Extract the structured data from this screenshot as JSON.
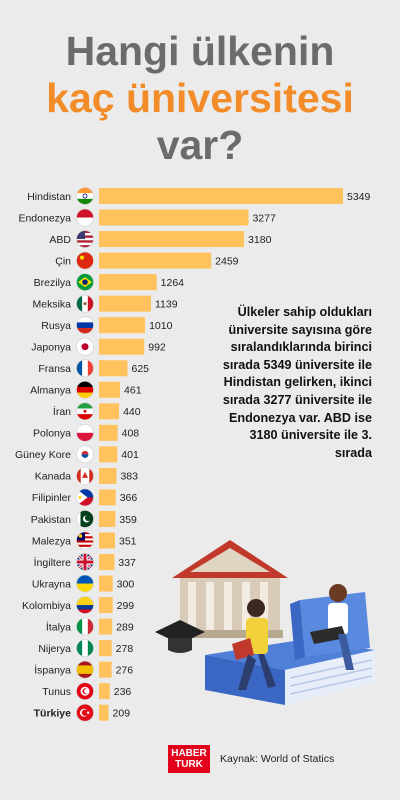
{
  "title": {
    "line1": "Hangi ülkenin",
    "line2": "kaç üniversitesi",
    "line3": "var?"
  },
  "description": "Ülkeler sahip oldukları üniversite sayısına göre sıralandıklarında birinci sırada 5349 üniversite ile Hindistan gelirken, ikinci sırada 3277 üniversite ile Endonezya var. ABD ise 3180 üniversite ile 3. sırada",
  "logo": {
    "line1": "HABER",
    "line2": "TURK"
  },
  "source": "Kaynak: World of Statics",
  "colors": {
    "bar": "#ffc25c",
    "title_gray": "#6b6b6b",
    "title_accent": "#f28c28",
    "background": "#ebebeb"
  },
  "chart_data": {
    "type": "bar",
    "orientation": "horizontal",
    "categories": [
      "Hindistan",
      "Endonezya",
      "ABD",
      "Çin",
      "Brezilya",
      "Meksika",
      "Rusya",
      "Japonya",
      "Fransa",
      "Almanya",
      "İran",
      "Polonya",
      "Güney Kore",
      "Kanada",
      "Filipinler",
      "Pakistan",
      "Malezya",
      "İngiltere",
      "Ukrayna",
      "Kolombiya",
      "İtalya",
      "Nijerya",
      "İspanya",
      "Tunus",
      "Türkiye"
    ],
    "values": [
      5349,
      3277,
      3180,
      2459,
      1264,
      1139,
      1010,
      992,
      625,
      461,
      440,
      408,
      401,
      383,
      366,
      359,
      351,
      337,
      300,
      299,
      289,
      278,
      276,
      236,
      209
    ],
    "flags": [
      "india",
      "indonesia",
      "usa",
      "china",
      "brazil",
      "mexico",
      "russia",
      "japan",
      "france",
      "germany",
      "iran",
      "poland",
      "south-korea",
      "canada",
      "philippines",
      "pakistan",
      "malaysia",
      "uk",
      "ukraine",
      "colombia",
      "italy",
      "nigeria",
      "spain",
      "tunisia",
      "turkey"
    ],
    "highlight": "Türkiye",
    "xlim": [
      0,
      5349
    ],
    "grid": false,
    "legend": "none"
  }
}
